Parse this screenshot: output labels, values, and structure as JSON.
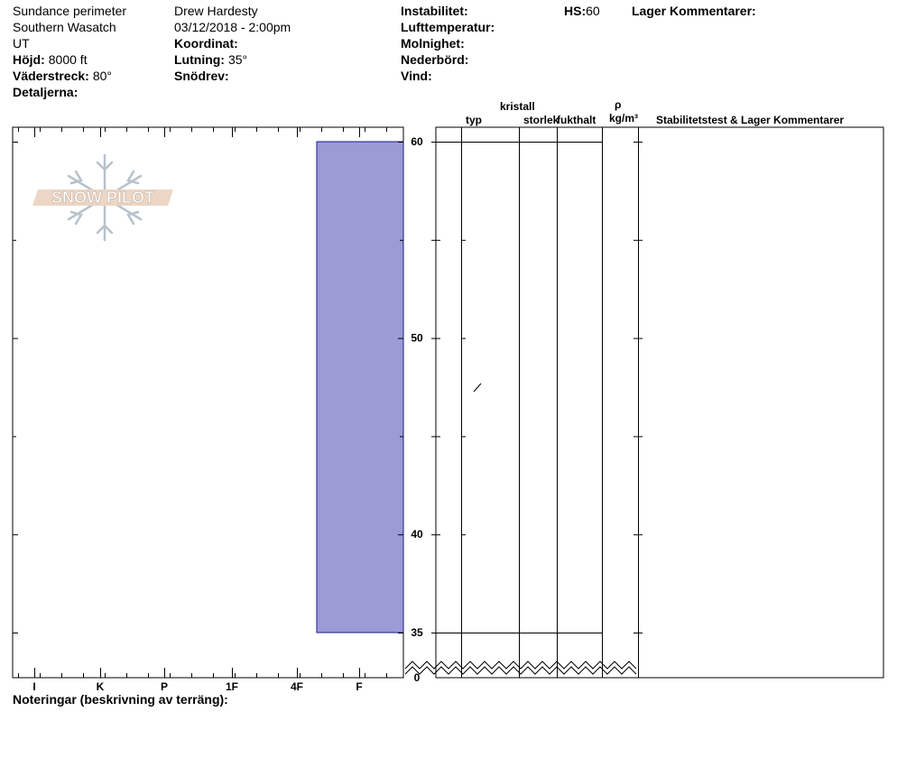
{
  "header": {
    "location": "Sundance perimeter",
    "range": "Southern Wasatch",
    "state": "UT",
    "elevation_label": "Höjd:",
    "elevation_value": "8000 ft",
    "aspect_label": "Väderstreck:",
    "aspect_value": "80°",
    "details_label": "Detaljerna:",
    "observer": "Drew Hardesty",
    "datetime": "03/12/2018 - 2:00pm",
    "coord_label": "Koordinat:",
    "slope_label": "Lutning:",
    "slope_value": "35°",
    "wind_loading_label": "Snödrev:",
    "instability_label": "Instabilitet:",
    "air_temp_label": "Lufttemperatur:",
    "clouds_label": "Molnighet:",
    "precip_label": "Nederbörd:",
    "wind_label": "Vind:",
    "hs_label": "HS:",
    "hs_value": "60",
    "layer_comments_label": "Lager Kommentarer:"
  },
  "columns": {
    "crystal": "kristall",
    "type": "typ",
    "size": "storlek",
    "moisture": "fukthalt",
    "rho": "ρ",
    "density_unit": "kg/m³",
    "stability": "Stabilitetstest & Lager Kommentarer"
  },
  "notes_label": "Noteringar (beskrivning av terräng):",
  "logo_text": "SNOW PILOT",
  "chart_data": {
    "type": "bar",
    "title": "",
    "xlabel": "",
    "ylabel": "",
    "orientation": "horizontal",
    "x_categories": [
      "I",
      "K",
      "P",
      "1F",
      "4F",
      "F"
    ],
    "y_ticks": [
      "0",
      "35",
      "40",
      "50",
      "60"
    ],
    "ylim": [
      0,
      60
    ],
    "axis_break": true,
    "layers": [
      {
        "top": 60,
        "bottom": 35,
        "hardness": "4F-F",
        "color": "#9b9bd6",
        "crystal_type": "/"
      }
    ]
  }
}
